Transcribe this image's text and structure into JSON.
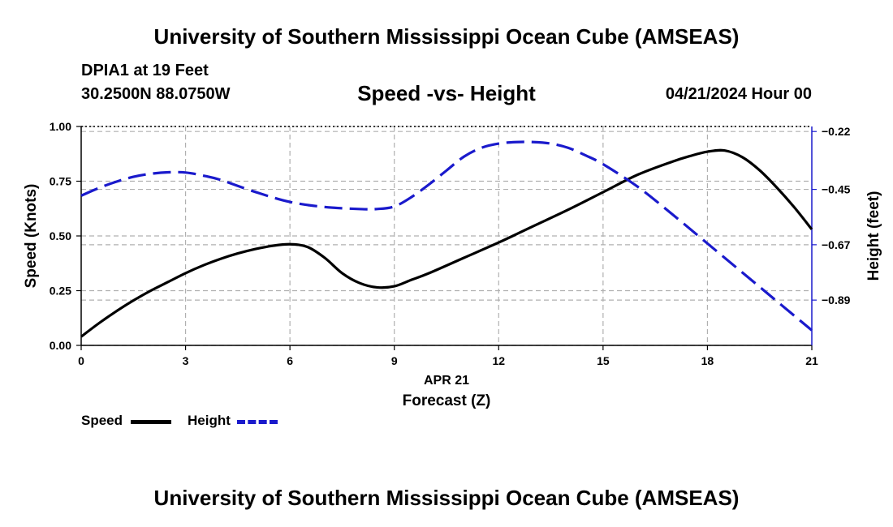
{
  "header": {
    "institution": "University of Southern Mississippi Ocean Cube (AMSEAS)",
    "station": "DPIA1 at 19 Feet",
    "coordinates": "30.2500N  88.0750W",
    "datetime": "04/21/2024 Hour 00"
  },
  "footer": {
    "institution": "University of Southern Mississippi Ocean Cube (AMSEAS)"
  },
  "colors": {
    "speed": "#000000",
    "height": "#1a1acc",
    "grid": "#b0b0b0"
  },
  "chart_data": {
    "type": "line",
    "title": "Speed -vs- Height",
    "xlabel": "Forecast (Z)",
    "date_label": "APR 21",
    "ylabel": "Speed (Knots)",
    "y2label": "Height (feet)",
    "xlim": [
      0,
      21
    ],
    "ylim": [
      0,
      1
    ],
    "y2lim": [
      -1.07,
      -0.2
    ],
    "xticks": [
      0,
      3,
      6,
      9,
      12,
      15,
      18,
      21
    ],
    "yticks": [
      0.0,
      0.25,
      0.5,
      0.75,
      1.0
    ],
    "ytick_labels": [
      "0.00",
      "0.25",
      "0.50",
      "0.75",
      "1.00"
    ],
    "y2ticks": [
      -0.22,
      -0.45,
      -0.67,
      -0.89
    ],
    "y2tick_labels": [
      "-0.22",
      "-0.45",
      "-0.67",
      "-0.89"
    ],
    "grid": true,
    "series": [
      {
        "name": "Speed",
        "axis": "left",
        "style": "solid",
        "x": [
          0,
          0.5,
          1,
          1.5,
          2,
          2.5,
          3,
          3.5,
          4,
          4.5,
          5,
          5.5,
          6,
          6.5,
          7,
          7.5,
          8,
          8.5,
          9,
          9.5,
          10,
          11,
          12,
          13,
          14,
          15,
          16,
          17,
          17.5,
          18,
          18.5,
          19,
          19.5,
          20,
          20.5,
          21
        ],
        "values": [
          0.04,
          0.1,
          0.155,
          0.205,
          0.25,
          0.29,
          0.33,
          0.365,
          0.395,
          0.42,
          0.44,
          0.455,
          0.462,
          0.45,
          0.4,
          0.33,
          0.285,
          0.265,
          0.27,
          0.3,
          0.33,
          0.4,
          0.47,
          0.545,
          0.62,
          0.7,
          0.78,
          0.84,
          0.865,
          0.885,
          0.89,
          0.86,
          0.8,
          0.72,
          0.63,
          0.53
        ]
      },
      {
        "name": "Height",
        "axis": "right",
        "style": "dashed",
        "x": [
          0,
          0.5,
          1,
          1.5,
          2,
          2.5,
          3,
          3.5,
          4,
          5,
          6,
          7,
          8,
          8.5,
          9,
          9.5,
          10,
          10.5,
          11,
          11.5,
          12,
          12.5,
          13,
          13.5,
          14,
          14.5,
          15,
          16,
          17,
          18,
          19,
          20,
          21
        ],
        "values": [
          -0.475,
          -0.445,
          -0.42,
          -0.4,
          -0.388,
          -0.382,
          -0.383,
          -0.395,
          -0.412,
          -0.46,
          -0.5,
          -0.52,
          -0.528,
          -0.528,
          -0.518,
          -0.48,
          -0.43,
          -0.375,
          -0.32,
          -0.285,
          -0.268,
          -0.262,
          -0.262,
          -0.268,
          -0.285,
          -0.315,
          -0.35,
          -0.44,
          -0.55,
          -0.665,
          -0.78,
          -0.895,
          -1.01
        ]
      }
    ],
    "legend": {
      "entries": [
        "Speed",
        "Height"
      ],
      "position": "bottom-left"
    }
  }
}
